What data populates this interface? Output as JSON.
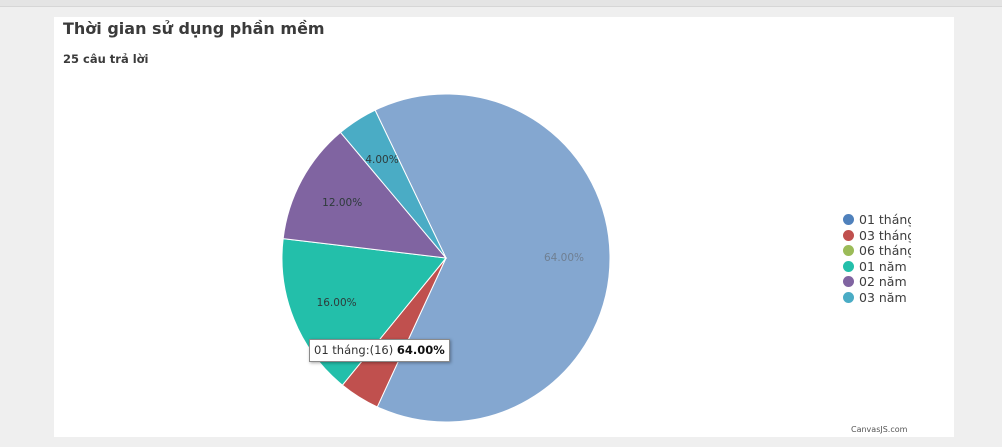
{
  "title": "Thời gian sử dụng phần mềm",
  "subtitle": "25 câu trả lời",
  "credit": "CanvasJS.com",
  "tooltip": {
    "label": "01 tháng:",
    "count": "(16)",
    "percent": "64.00%"
  },
  "chart_data": {
    "type": "pie",
    "categories": [
      "01 tháng",
      "03 tháng",
      "06 tháng",
      "01 năm",
      "02 năm",
      "03 năm"
    ],
    "values": [
      16,
      1,
      0,
      4,
      3,
      1
    ],
    "labels": [
      "64.00%",
      "4.00%",
      "0.00%",
      "16.00%",
      "12.00%",
      "4.00%"
    ],
    "colors": [
      "#4f81bc",
      "#c0504e",
      "#9bbb58",
      "#23bfaa",
      "#8064a1",
      "#4aacc5"
    ],
    "legend_position": "right",
    "highlighted_index": 0
  }
}
